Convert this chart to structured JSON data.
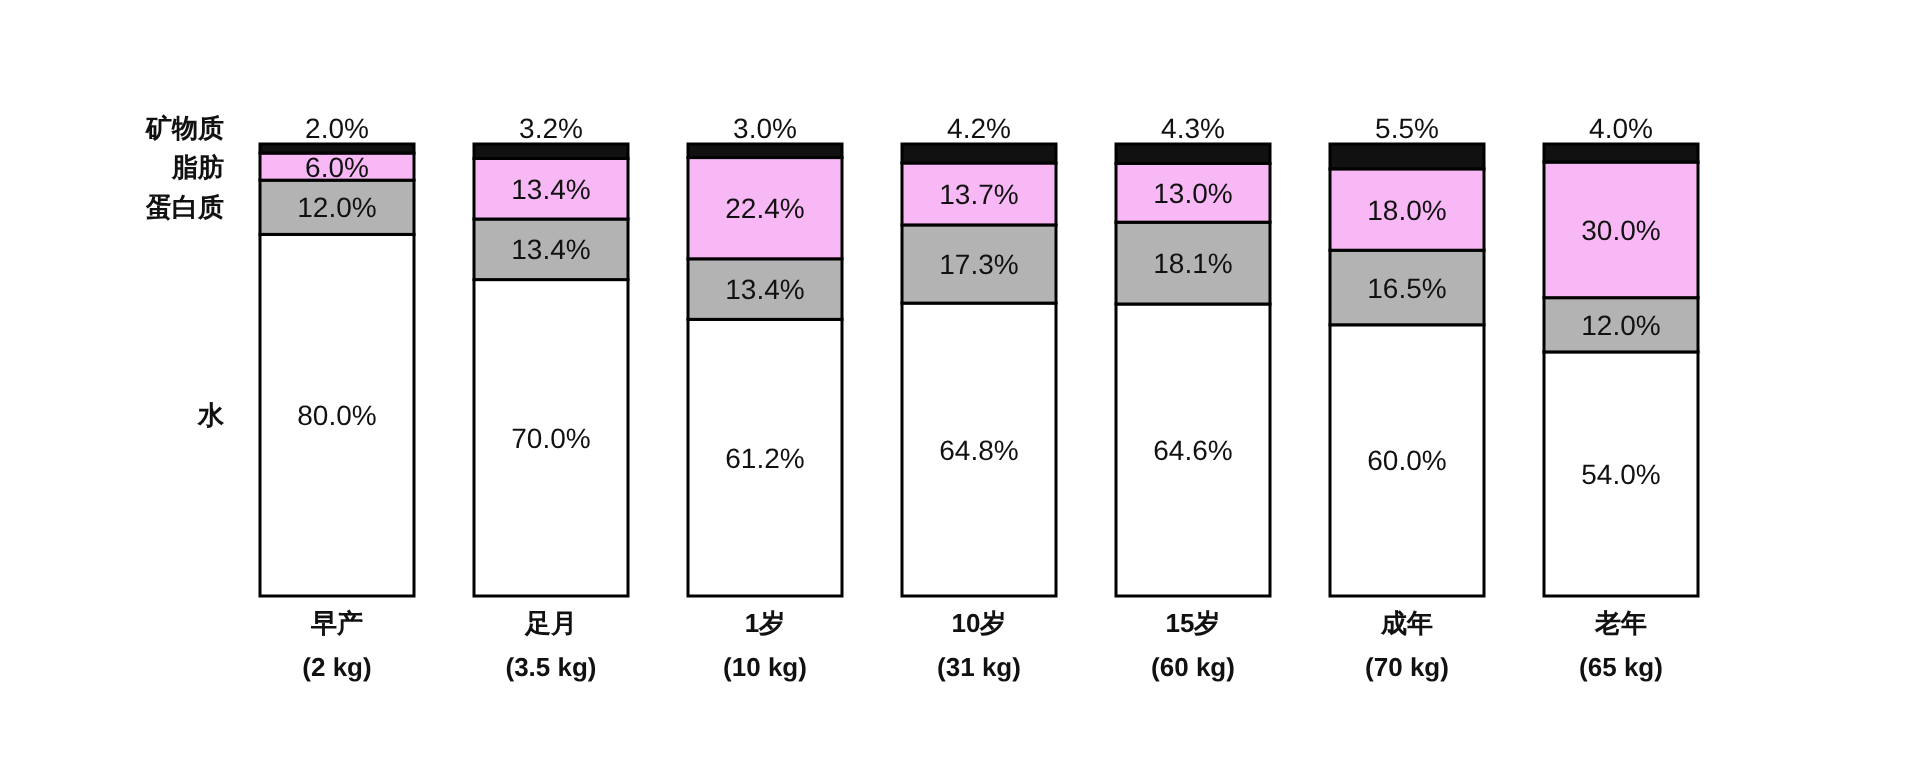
{
  "chart_data": {
    "type": "bar",
    "stacked": true,
    "categories": [
      "早产\n(2 kg)",
      "足月\n(3.5 kg)",
      "1岁\n(10 kg)",
      "10岁\n(31 kg)",
      "15岁\n(60 kg)",
      "成年\n(70 kg)",
      "老年\n(65 kg)"
    ],
    "series": [
      {
        "name": "水",
        "color": "#ffffff",
        "values": [
          80.0,
          70.0,
          61.2,
          64.8,
          64.6,
          60.0,
          54.0
        ],
        "value_labels": [
          "80.0%",
          "70.0%",
          "61.2%",
          "64.8%",
          "64.6%",
          "60.0%",
          "54.0%"
        ]
      },
      {
        "name": "蛋白质",
        "color": "#b3b3b3",
        "values": [
          12.0,
          13.4,
          13.4,
          17.3,
          18.1,
          16.5,
          12.0
        ],
        "value_labels": [
          "12.0%",
          "13.4%",
          "13.4%",
          "17.3%",
          "18.1%",
          "16.5%",
          "12.0%"
        ]
      },
      {
        "name": "脂肪",
        "color": "#f7b8f5",
        "values": [
          6.0,
          13.4,
          22.4,
          13.7,
          13.0,
          18.0,
          30.0
        ],
        "value_labels": [
          "6.0%",
          "13.4%",
          "22.4%",
          "13.7%",
          "13.0%",
          "18.0%",
          "30.0%"
        ]
      },
      {
        "name": "矿物质",
        "color": "#111111",
        "values": [
          2.0,
          3.2,
          3.0,
          4.2,
          4.3,
          5.5,
          4.0
        ],
        "value_labels": [
          "2.0%",
          "3.2%",
          "3.0%",
          "4.2%",
          "4.3%",
          "5.5%",
          "4.0%"
        ]
      }
    ]
  }
}
